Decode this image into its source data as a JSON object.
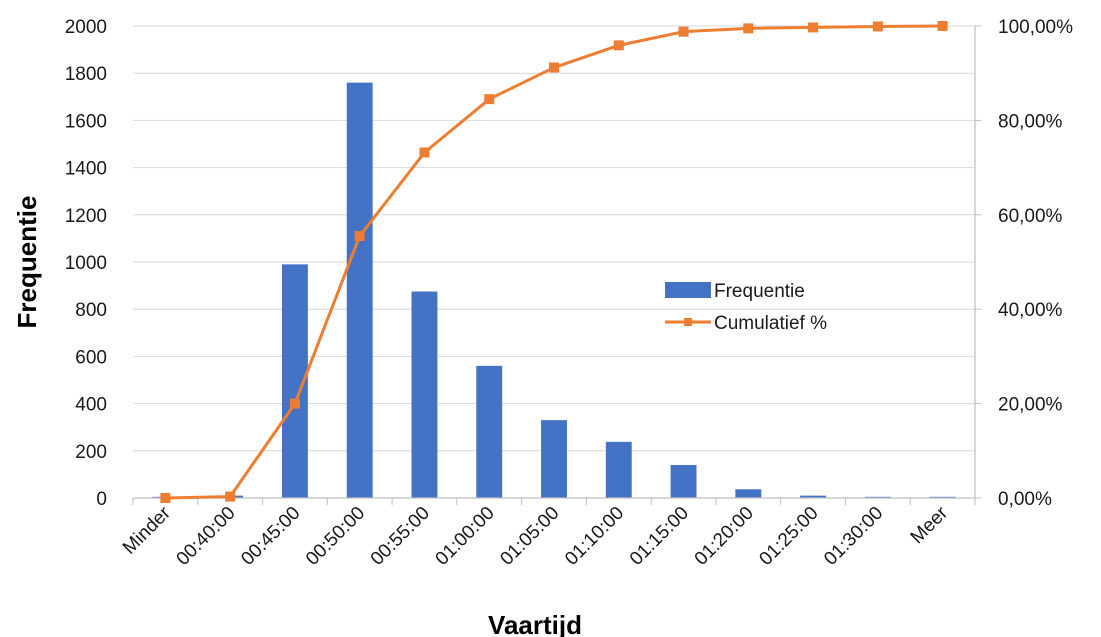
{
  "chart_data": {
    "type": "bar",
    "title": "",
    "xlabel": "Vaartijd",
    "ylabel": "Frequentie",
    "categories": [
      "Minder",
      "00:40:00",
      "00:45:00",
      "00:50:00",
      "00:55:00",
      "01:00:00",
      "01:05:00",
      "01:10:00",
      "01:15:00",
      "01:20:00",
      "01:25:00",
      "01:30:00",
      "Meer"
    ],
    "series": [
      {
        "name": "Frequentie",
        "type": "bar",
        "axis": "left",
        "color": "#4472C4",
        "values": [
          5,
          10,
          990,
          1760,
          875,
          560,
          330,
          238,
          140,
          37,
          10,
          5,
          5
        ]
      },
      {
        "name": "Cumulatief %",
        "type": "line",
        "axis": "right",
        "color": "#ED7D31",
        "marker": "square",
        "values": [
          0.0,
          0.3,
          20.0,
          55.5,
          73.2,
          84.5,
          91.2,
          95.9,
          98.8,
          99.5,
          99.7,
          99.9,
          100.0
        ]
      }
    ],
    "ylim": [
      0,
      2000
    ],
    "yticks": [
      "0",
      "200",
      "400",
      "600",
      "800",
      "1000",
      "1200",
      "1400",
      "1600",
      "1800",
      "2000"
    ],
    "y2lim": [
      0,
      100
    ],
    "y2ticks": [
      "0,00%",
      "20,00%",
      "40,00%",
      "60,00%",
      "80,00%",
      "100,00%"
    ],
    "grid": true,
    "legend_position": "center-right"
  }
}
